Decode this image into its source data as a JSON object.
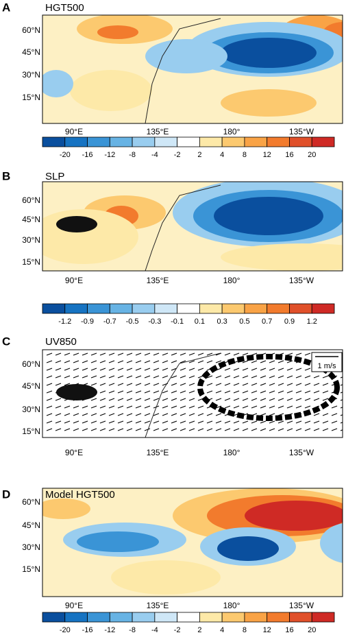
{
  "panels": [
    {
      "letter": "A",
      "title": "HGT500",
      "lat_labels": [
        "60°N",
        "45°N",
        "30°N",
        "15°N"
      ],
      "lon_labels": [
        "90°E",
        "135°E",
        "180°",
        "135°W"
      ],
      "colorbar": [
        "-20",
        "-16",
        "-12",
        "-8",
        "-4",
        "-2",
        "2",
        "4",
        "8",
        "12",
        "16",
        "20"
      ]
    },
    {
      "letter": "B",
      "title": "SLP",
      "lat_labels": [
        "60°N",
        "45°N",
        "30°N",
        "15°N"
      ],
      "lon_labels": [
        "90°E",
        "135°E",
        "180°",
        "135°W"
      ],
      "colorbar": [
        "-1.2",
        "-0.9",
        "-0.7",
        "-0.5",
        "-0.3",
        "-0.1",
        "0.1",
        "0.3",
        "0.5",
        "0.7",
        "0.9",
        "1.2"
      ]
    },
    {
      "letter": "C",
      "title": "UV850",
      "lat_labels": [
        "60°N",
        "45°N",
        "30°N",
        "15°N"
      ],
      "lon_labels": [
        "90°E",
        "135°E",
        "180°",
        "135°W"
      ],
      "reference": "1 m/s"
    },
    {
      "letter": "D",
      "title": "Model HGT500",
      "lat_labels": [
        "60°N",
        "45°N",
        "30°N",
        "15°N"
      ],
      "lon_labels": [
        "90°E",
        "135°E",
        "180°",
        "135°W"
      ],
      "colorbar": [
        "-20",
        "-16",
        "-12",
        "-8",
        "-4",
        "-2",
        "2",
        "4",
        "8",
        "12",
        "16",
        "20"
      ]
    }
  ]
}
